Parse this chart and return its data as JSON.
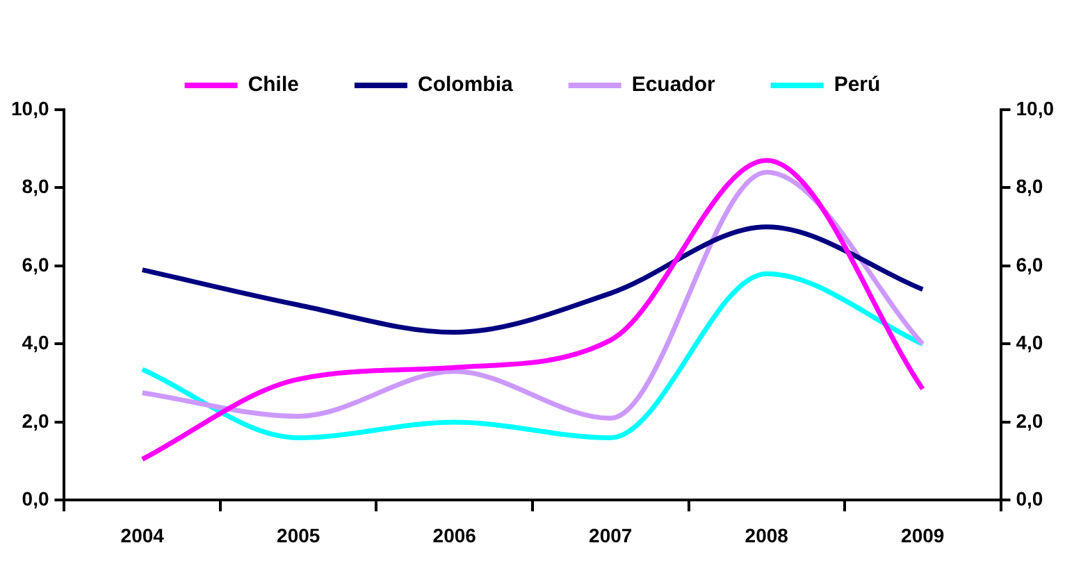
{
  "chart_data": {
    "type": "line",
    "categories": [
      "2004",
      "2005",
      "2006",
      "2007",
      "2008",
      "2009"
    ],
    "series": [
      {
        "name": "Chile",
        "color": "#ff00ff",
        "values": [
          1.05,
          3.1,
          3.4,
          4.1,
          8.7,
          2.85
        ]
      },
      {
        "name": "Colombia",
        "color": "#000080",
        "values": [
          5.9,
          5.0,
          4.3,
          5.3,
          7.0,
          5.4
        ]
      },
      {
        "name": "Ecuador",
        "color": "#cc99ff",
        "values": [
          2.75,
          2.15,
          3.3,
          2.1,
          8.4,
          4.0
        ]
      },
      {
        "name": "Perú",
        "color": "#00ffff",
        "values": [
          3.35,
          1.6,
          2.0,
          1.6,
          5.8,
          4.0
        ]
      }
    ],
    "ylim": [
      0,
      10
    ],
    "yticks": [
      {
        "value": 0,
        "label": "0,0"
      },
      {
        "value": 2,
        "label": "2,0"
      },
      {
        "value": 4,
        "label": "4,0"
      },
      {
        "value": 6,
        "label": "6,0"
      },
      {
        "value": 8,
        "label": "8,0"
      },
      {
        "value": 10,
        "label": "10,0"
      }
    ],
    "y2lim": [
      0,
      10
    ],
    "y2ticks": [
      {
        "value": 0,
        "label": "0,0"
      },
      {
        "value": 2,
        "label": "2,0"
      },
      {
        "value": 4,
        "label": "4,0"
      },
      {
        "value": 6,
        "label": "6,0"
      },
      {
        "value": 8,
        "label": "8,0"
      },
      {
        "value": 10,
        "label": "10,0"
      }
    ],
    "legend": "top",
    "grid": false,
    "marker": "none",
    "line_style": "solid"
  }
}
